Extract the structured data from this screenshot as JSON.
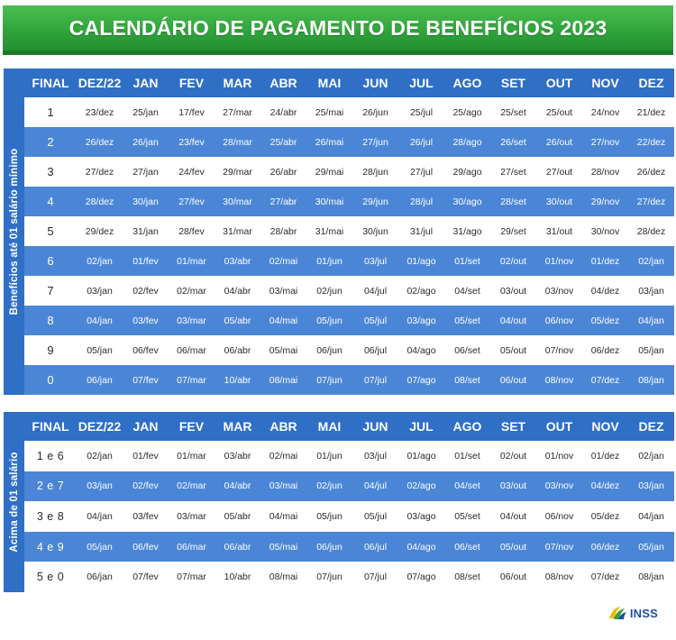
{
  "title": "CALENDÁRIO DE PAGAMENTO DE BENEFÍCIOS 2023",
  "headers": [
    "FINAL",
    "DEZ/22",
    "JAN",
    "FEV",
    "MAR",
    "ABR",
    "MAI",
    "JUN",
    "JUL",
    "AGO",
    "SET",
    "OUT",
    "NOV",
    "DEZ"
  ],
  "section1": {
    "label": "Benefícios até 01 salário mínimo",
    "rows": [
      {
        "final": "1",
        "dates": [
          "23/dez",
          "25/jan",
          "17/fev",
          "27/mar",
          "24/abr",
          "25/mai",
          "26/jun",
          "25/jul",
          "25/ago",
          "25/set",
          "25/out",
          "24/nov",
          "21/dez"
        ]
      },
      {
        "final": "2",
        "dates": [
          "26/dez",
          "26/jan",
          "23/fev",
          "28/mar",
          "25/abr",
          "26/mai",
          "27/jun",
          "26/jul",
          "28/ago",
          "26/set",
          "26/out",
          "27/nov",
          "22/dez"
        ]
      },
      {
        "final": "3",
        "dates": [
          "27/dez",
          "27/jan",
          "24/fev",
          "29/mar",
          "26/abr",
          "29/mai",
          "28/jun",
          "27/jul",
          "29/ago",
          "27/set",
          "27/out",
          "28/nov",
          "26/dez"
        ]
      },
      {
        "final": "4",
        "dates": [
          "28/dez",
          "30/jan",
          "27/fev",
          "30/mar",
          "27/abr",
          "30/mai",
          "29/jun",
          "28/jul",
          "30/ago",
          "28/set",
          "30/out",
          "29/nov",
          "27/dez"
        ]
      },
      {
        "final": "5",
        "dates": [
          "29/dez",
          "31/jan",
          "28/fev",
          "31/mar",
          "28/abr",
          "31/mai",
          "30/jun",
          "31/jul",
          "31/ago",
          "29/set",
          "31/out",
          "30/nov",
          "28/dez"
        ]
      },
      {
        "final": "6",
        "dates": [
          "02/jan",
          "01/fev",
          "01/mar",
          "03/abr",
          "02/mai",
          "01/jun",
          "03/jul",
          "01/ago",
          "01/set",
          "02/out",
          "01/nov",
          "01/dez",
          "02/jan"
        ]
      },
      {
        "final": "7",
        "dates": [
          "03/jan",
          "02/fev",
          "02/mar",
          "04/abr",
          "03/mai",
          "02/jun",
          "04/jul",
          "02/ago",
          "04/set",
          "03/out",
          "03/nov",
          "04/dez",
          "03/jan"
        ]
      },
      {
        "final": "8",
        "dates": [
          "04/jan",
          "03/fev",
          "03/mar",
          "05/abr",
          "04/mai",
          "05/jun",
          "05/jul",
          "03/ago",
          "05/set",
          "04/out",
          "06/nov",
          "05/dez",
          "04/jan"
        ]
      },
      {
        "final": "9",
        "dates": [
          "05/jan",
          "06/fev",
          "06/mar",
          "06/abr",
          "05/mai",
          "06/jun",
          "06/jul",
          "04/ago",
          "06/set",
          "05/out",
          "07/nov",
          "06/dez",
          "05/jan"
        ]
      },
      {
        "final": "0",
        "dates": [
          "06/jan",
          "07/fev",
          "07/mar",
          "10/abr",
          "08/mai",
          "07/jun",
          "07/jul",
          "07/ago",
          "08/set",
          "06/out",
          "08/nov",
          "07/dez",
          "08/jan"
        ]
      }
    ]
  },
  "section2": {
    "label": "Acima de 01 salário",
    "rows": [
      {
        "final": "1 e 6",
        "dates": [
          "02/jan",
          "01/fev",
          "01/mar",
          "03/abr",
          "02/mai",
          "01/jun",
          "03/jul",
          "01/ago",
          "01/set",
          "02/out",
          "01/nov",
          "01/dez",
          "02/jan"
        ]
      },
      {
        "final": "2 e 7",
        "dates": [
          "03/jan",
          "02/fev",
          "02/mar",
          "04/abr",
          "03/mai",
          "02/jun",
          "04/jul",
          "02/ago",
          "04/set",
          "03/out",
          "03/nov",
          "04/dez",
          "03/jan"
        ]
      },
      {
        "final": "3 e 8",
        "dates": [
          "04/jan",
          "03/fev",
          "03/mar",
          "05/abr",
          "04/mai",
          "05/jun",
          "05/jul",
          "03/ago",
          "05/set",
          "04/out",
          "06/nov",
          "05/dez",
          "04/jan"
        ]
      },
      {
        "final": "4 e 9",
        "dates": [
          "05/jan",
          "06/fev",
          "06/mar",
          "06/abr",
          "05/mai",
          "06/jun",
          "06/jul",
          "04/ago",
          "06/set",
          "05/out",
          "07/nov",
          "06/dez",
          "05/jan"
        ]
      },
      {
        "final": "5 e 0",
        "dates": [
          "06/jan",
          "07/fev",
          "07/mar",
          "10/abr",
          "08/mai",
          "07/jun",
          "07/jul",
          "07/ago",
          "08/set",
          "06/out",
          "08/nov",
          "07/dez",
          "08/jan"
        ]
      }
    ]
  },
  "logo": {
    "text": "INSS",
    "icon": "inss-logo-icon"
  },
  "colors": {
    "banner_green": "#2fa23a",
    "header_blue": "#2f6fc6",
    "row_blue": "#4b86d6"
  }
}
